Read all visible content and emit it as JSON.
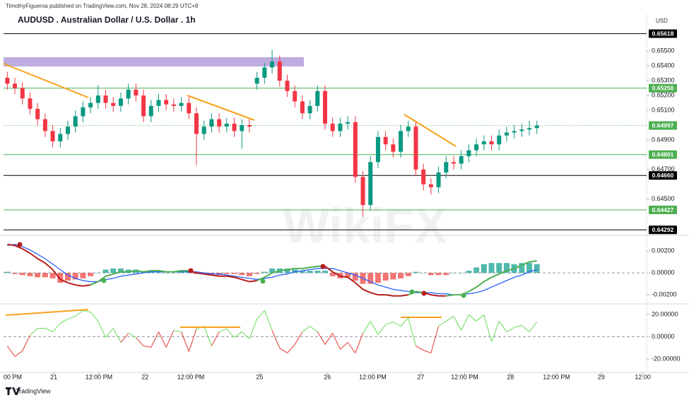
{
  "header": {
    "publisher": "TimothyFigueroa published on TradingView.com, Nov 28, 2024 08:29 UTC+8",
    "currency": "USD",
    "logo": "TradingView",
    "watermark": "WikiFX"
  },
  "chart_data": [
    {
      "type": "candlestick",
      "title": "AUDUSD . Australian Dollar / U.S. Dollar . 1h",
      "up_color": "#089981",
      "down_color": "#f23645",
      "x": [
        1,
        3,
        5,
        7,
        9,
        11,
        13,
        15,
        17,
        19,
        21,
        23,
        25,
        27,
        29,
        31,
        33,
        35,
        37,
        39,
        41,
        43,
        45,
        47,
        49,
        51,
        53,
        55,
        57,
        59,
        61,
        63,
        65,
        67,
        69,
        71,
        73,
        75,
        77,
        79,
        81,
        83,
        85,
        87,
        89,
        91,
        93,
        95,
        97,
        99,
        101,
        103,
        105,
        107,
        109,
        111,
        113,
        115,
        117,
        119,
        121,
        123,
        125,
        127,
        129,
        131,
        133,
        135,
        137,
        139,
        141
      ],
      "open": [
        0.6532,
        0.6528,
        0.6525,
        0.6518,
        0.6511,
        0.6504,
        0.6496,
        0.6489,
        0.6494,
        0.6499,
        0.6506,
        0.6512,
        0.6515,
        0.652,
        0.6515,
        0.6513,
        0.6518,
        0.6524,
        0.652,
        0.6506,
        0.6513,
        0.6517,
        0.6514,
        0.6513,
        0.6515,
        0.6508,
        0.6494,
        0.6499,
        0.6504,
        0.6499,
        0.6501,
        0.6496,
        0.65,
        0.6528,
        0.6532,
        0.6539,
        0.6543,
        0.653,
        0.6523,
        0.6516,
        0.6508,
        0.6513,
        0.6523,
        0.6501,
        0.6496,
        0.6501,
        0.6502,
        0.6465,
        0.6446,
        0.6475,
        0.6492,
        0.6487,
        0.6482,
        0.6496,
        0.6499,
        0.647,
        0.646,
        0.6458,
        0.6468,
        0.6475,
        0.6474,
        0.6479,
        0.6483,
        0.6487,
        0.6489,
        0.6487,
        0.6493,
        0.6495,
        0.6496,
        0.6497,
        0.6498
      ],
      "high": [
        0.6536,
        0.6532,
        0.6529,
        0.6522,
        0.6515,
        0.6508,
        0.65,
        0.6498,
        0.6503,
        0.651,
        0.6516,
        0.6519,
        0.6527,
        0.6524,
        0.6519,
        0.6522,
        0.6528,
        0.6528,
        0.6524,
        0.6517,
        0.6521,
        0.6521,
        0.6518,
        0.6519,
        0.6519,
        0.6512,
        0.6503,
        0.6508,
        0.6508,
        0.6505,
        0.6505,
        0.6504,
        0.6504,
        0.6536,
        0.6542,
        0.6551,
        0.6547,
        0.6534,
        0.6527,
        0.652,
        0.6517,
        0.6527,
        0.6527,
        0.6505,
        0.6505,
        0.6506,
        0.6506,
        0.6469,
        0.6479,
        0.6496,
        0.6496,
        0.6491,
        0.65,
        0.6503,
        0.6503,
        0.6474,
        0.6464,
        0.6472,
        0.6479,
        0.6479,
        0.6483,
        0.6487,
        0.6491,
        0.6493,
        0.6493,
        0.6497,
        0.6499,
        0.65,
        0.6501,
        0.6503,
        0.6503
      ],
      "low": [
        0.6524,
        0.6521,
        0.6514,
        0.6507,
        0.65,
        0.6492,
        0.6485,
        0.6485,
        0.649,
        0.6495,
        0.6502,
        0.6508,
        0.6511,
        0.6511,
        0.6509,
        0.6509,
        0.6514,
        0.6516,
        0.6502,
        0.6502,
        0.6509,
        0.651,
        0.6509,
        0.6509,
        0.6504,
        0.6473,
        0.649,
        0.6495,
        0.6495,
        0.6495,
        0.6492,
        0.6484,
        0.6495,
        0.6524,
        0.6528,
        0.6535,
        0.6526,
        0.6519,
        0.6512,
        0.6504,
        0.6504,
        0.6509,
        0.6497,
        0.6492,
        0.6492,
        0.6497,
        0.6461,
        0.6438,
        0.6442,
        0.6471,
        0.6483,
        0.6478,
        0.6478,
        0.6492,
        0.6466,
        0.6456,
        0.6453,
        0.6454,
        0.6464,
        0.647,
        0.647,
        0.6475,
        0.6479,
        0.6483,
        0.6483,
        0.6483,
        0.6489,
        0.6491,
        0.6492,
        0.6493,
        0.6494
      ],
      "close": [
        0.6528,
        0.6525,
        0.6518,
        0.6511,
        0.6504,
        0.6496,
        0.6489,
        0.6494,
        0.6499,
        0.6506,
        0.6512,
        0.6515,
        0.652,
        0.6515,
        0.6513,
        0.6518,
        0.6524,
        0.652,
        0.6506,
        0.6513,
        0.6517,
        0.6514,
        0.6513,
        0.6515,
        0.6508,
        0.6494,
        0.6499,
        0.6504,
        0.6499,
        0.6501,
        0.6496,
        0.65,
        0.6499,
        0.6532,
        0.6539,
        0.6543,
        0.653,
        0.6523,
        0.6516,
        0.6508,
        0.6513,
        0.6523,
        0.6501,
        0.6496,
        0.6501,
        0.6502,
        0.6465,
        0.6446,
        0.6475,
        0.6492,
        0.6487,
        0.6482,
        0.6496,
        0.6499,
        0.647,
        0.646,
        0.6458,
        0.6468,
        0.6475,
        0.6474,
        0.6479,
        0.6483,
        0.6487,
        0.6489,
        0.6487,
        0.6493,
        0.6495,
        0.6496,
        0.6497,
        0.6498,
        0.64997
      ],
      "ylim": [
        0.6426,
        0.6575
      ],
      "yticks": [
        {
          "value": 0.655,
          "label": "0.65500"
        },
        {
          "value": 0.654,
          "label": "0.65400"
        },
        {
          "value": 0.653,
          "label": "0.65300"
        },
        {
          "value": 0.652,
          "label": "0.65200"
        },
        {
          "value": 0.651,
          "label": "0.65100"
        },
        {
          "value": 0.649,
          "label": "0.64900"
        },
        {
          "value": 0.647,
          "label": "0.64700"
        },
        {
          "value": 0.645,
          "label": "0.64500"
        }
      ],
      "levels": [
        {
          "value": 0.65618,
          "color": "#000000"
        },
        {
          "value": 0.6525,
          "label": "0.65250",
          "color": "#4caf50"
        },
        {
          "value": 0.64997,
          "color": "#4caf50",
          "dotted": true
        },
        {
          "value": 0.64801,
          "color": "#4caf50"
        },
        {
          "value": 0.6466,
          "label": "0.64660",
          "color": "#000000"
        },
        {
          "value": 0.64427,
          "color": "#4caf50"
        },
        {
          "value": 0.64292,
          "color": "#000000"
        }
      ]
    },
    {
      "type": "macd",
      "up_color": "#4caf50",
      "down_color": "#b71c1c",
      "signal_color": "#2962ff",
      "hist_up_color": "#26a69a",
      "hist_down_color": "#ef5350",
      "macd": [
        0.0026,
        0.0025,
        0.0022,
        0.0018,
        0.0013,
        0.0009,
        0.0003,
        -0.0006,
        -0.0009,
        -0.0011,
        -0.0012,
        -0.0011,
        -0.0008,
        -0.0003,
        -0.0001,
        0.0001,
        0.0001,
        0.0002,
        0.0001,
        0.0002,
        0.0002,
        0.0001,
        0.0001,
        0.0002,
        0.0002,
        0,
        -0.0001,
        -0.0002,
        -0.0003,
        -0.0003,
        -0.0004,
        -0.0006,
        -0.0008,
        -0.0007,
        -0.0004,
        0,
        0.0002,
        0.0003,
        0.0004,
        0.0004,
        0.0005,
        0.0006,
        0.0006,
        0.0001,
        -0.0003,
        -0.0004,
        -0.0009,
        -0.0015,
        -0.0018,
        -0.002,
        -0.002,
        -0.0021,
        -0.0021,
        -0.002,
        -0.0017,
        -0.0018,
        -0.002,
        -0.0021,
        -0.0021,
        -0.002,
        -0.002,
        -0.0017,
        -0.0013,
        -0.0008,
        -0.0004,
        -0.0001,
        0.0002,
        0.0004,
        0.0007,
        0.001,
        0.0011
      ],
      "signal": [
        0.0025,
        0.0026,
        0.0024,
        0.0021,
        0.0017,
        0.0013,
        0.0008,
        0.0003,
        -0.0002,
        -0.0005,
        -0.0007,
        -0.0008,
        -0.0008,
        -0.0006,
        -0.0005,
        -0.0003,
        -0.0002,
        -0.0001,
        0,
        0.0001,
        0.0001,
        0.0001,
        0.0001,
        0.0001,
        0.0001,
        0.0001,
        0,
        -0.0001,
        -0.0001,
        -0.0002,
        -0.0003,
        -0.0004,
        -0.0005,
        -0.0006,
        -0.0005,
        -0.0004,
        -0.0002,
        -0.0001,
        0.0001,
        0.0002,
        0.0003,
        0.0004,
        0.0004,
        0.0004,
        0.0002,
        0,
        -0.0002,
        -0.0005,
        -0.0008,
        -0.0011,
        -0.0013,
        -0.0015,
        -0.0016,
        -0.0017,
        -0.0018,
        -0.0018,
        -0.0018,
        -0.0019,
        -0.0019,
        -0.002,
        -0.002,
        -0.0019,
        -0.0018,
        -0.0016,
        -0.0013,
        -0.001,
        -0.0007,
        -0.0004,
        -0.0002,
        0.0001,
        0.0003
      ],
      "histogram": [
        0.0001,
        -0.0001,
        -0.0002,
        -0.0003,
        -0.0004,
        -0.0004,
        -0.0005,
        -0.0009,
        -0.0007,
        -0.0006,
        -0.0005,
        -0.0003,
        0,
        0.0003,
        0.0004,
        0.0004,
        0.0003,
        0.0003,
        0.0001,
        0.0001,
        0.0001,
        0,
        0,
        0.0001,
        0.0001,
        -0.0001,
        -0.0001,
        -0.0001,
        -0.0002,
        -0.0001,
        -0.0001,
        -0.0002,
        -0.0003,
        -0.0001,
        0.0001,
        0.0004,
        0.0004,
        0.0004,
        0.0003,
        0.0002,
        0.0002,
        0.0002,
        0.0002,
        -0.0003,
        -0.0005,
        -0.0004,
        -0.0007,
        -0.001,
        -0.001,
        -0.0009,
        -0.0007,
        -0.0006,
        -0.0005,
        -0.0003,
        0.0001,
        0,
        -0.0002,
        -0.0002,
        -0.0002,
        0,
        0,
        0.0002,
        0.0005,
        0.0008,
        0.0009,
        0.0009,
        0.0009,
        0.0008,
        0.0009,
        0.0009,
        0.0008
      ],
      "ylim": [
        -0.0027,
        0.0033
      ],
      "yticks": [
        {
          "value": 0.002,
          "label": "0.00200"
        },
        {
          "value": 0,
          "label": "0.00000"
        },
        {
          "value": -0.002,
          "label": "-0.00200"
        }
      ]
    },
    {
      "type": "line",
      "up_color": "#66dd55",
      "down_color": "#e53935",
      "values": [
        -8.3,
        -17.8,
        -12.7,
        1.3,
        7.6,
        7.6,
        4.4,
        12.1,
        15.9,
        18.4,
        23.5,
        22.2,
        14,
        -0.6,
        7.6,
        -5.1,
        3.2,
        -0.6,
        -8.3,
        -9.5,
        4.4,
        -9.5,
        5.7,
        4.4,
        -13.3,
        7,
        9.5,
        -8.3,
        4.4,
        7,
        -0.6,
        4.4,
        -1.9,
        15.9,
        23.5,
        5.7,
        -10.2,
        -14.6,
        -7,
        4.4,
        9.5,
        4.4,
        -7,
        3.2,
        -11.4,
        -5.1,
        -14.6,
        3.2,
        14,
        1.9,
        10.8,
        13.3,
        9.5,
        17.1,
        -8.3,
        -12.1,
        -14.6,
        9.5,
        14,
        18.4,
        5.7,
        19.7,
        14,
        19.7,
        -4.4,
        14,
        4.4,
        8.3,
        10.2,
        4.4,
        13.3
      ],
      "ylim": [
        -30.8,
        27.6
      ],
      "yticks": [
        {
          "value": 20,
          "label": "20.00000"
        },
        {
          "value": 0,
          "label": "0.00000"
        },
        {
          "value": -20,
          "label": "-20.00000"
        }
      ],
      "xlim": [
        0,
        170
      ],
      "xticks": [
        {
          "value": 2.4,
          "label": "00 PM"
        },
        {
          "value": 13.3,
          "label": "21"
        },
        {
          "value": 25.2,
          "label": "12:00 PM"
        },
        {
          "value": 37.4,
          "label": "22"
        },
        {
          "value": 49.5,
          "label": "12:00 PM"
        },
        {
          "value": 67.7,
          "label": "25"
        },
        {
          "value": 85.6,
          "label": "26"
        },
        {
          "value": 97.6,
          "label": "12:00 PM"
        },
        {
          "value": 110.3,
          "label": "27"
        },
        {
          "value": 121.9,
          "label": "12:00 PM"
        },
        {
          "value": 134,
          "label": "28"
        },
        {
          "value": 146.2,
          "label": "12:00 PM"
        },
        {
          "value": 158,
          "label": "29"
        },
        {
          "value": 169,
          "label": "12:00"
        }
      ]
    }
  ]
}
